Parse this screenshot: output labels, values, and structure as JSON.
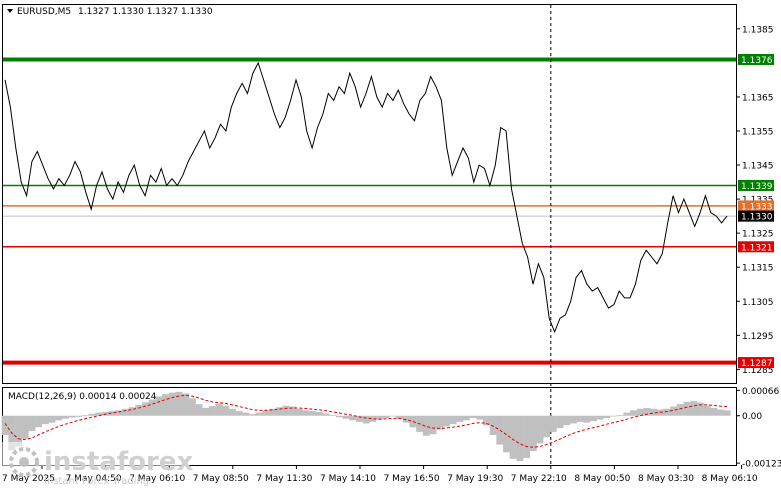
{
  "chart_data": [
    {
      "type": "line",
      "symbol": "EURUSD,M5",
      "ohlc_header": "1.1327 1.1330 1.1327 1.1330",
      "ylim": [
        1.1281,
        1.1392
      ],
      "y_ticks": [
        1.1385,
        1.1365,
        1.1355,
        1.1345,
        1.1335,
        1.1325,
        1.1315,
        1.1305,
        1.1295,
        1.1285
      ],
      "x_tick_labels": [
        "7 May 2025",
        "7 May 04:50",
        "7 May 06:10",
        "7 May 08:50",
        "7 May 11:30",
        "7 May 14:10",
        "7 May 16:50",
        "7 May 19:30",
        "7 May 22:10",
        "8 May 00:50",
        "8 May 03:30",
        "8 May 06:10"
      ],
      "levels": [
        {
          "value": 1.1376,
          "label": "1.1376",
          "color": "#008000",
          "thick": true
        },
        {
          "value": 1.1339,
          "label": "1.1339",
          "color": "#008000",
          "thick": false
        },
        {
          "value": 1.1333,
          "label": "1.1333",
          "color": "#e07030",
          "thick": false
        },
        {
          "value": 1.133,
          "label": "1.1330",
          "color": "#c0c0c0",
          "thick": false
        },
        {
          "value": 1.1321,
          "label": "1.1321",
          "color": "#e00000",
          "thick": false
        },
        {
          "value": 1.1287,
          "label": "1.1287",
          "color": "#e00000",
          "thick": true
        }
      ],
      "vline_fraction_label": "7 May 22:10",
      "price_series": [
        1.137,
        1.1362,
        1.135,
        1.134,
        1.1336,
        1.1346,
        1.1349,
        1.1345,
        1.1341,
        1.1338,
        1.1341,
        1.1339,
        1.1342,
        1.1346,
        1.1343,
        1.1337,
        1.1332,
        1.1339,
        1.1343,
        1.1338,
        1.1335,
        1.134,
        1.1337,
        1.1342,
        1.1345,
        1.1339,
        1.1336,
        1.1342,
        1.134,
        1.1344,
        1.1339,
        1.1341,
        1.1339,
        1.1342,
        1.1346,
        1.1349,
        1.1352,
        1.1355,
        1.135,
        1.1353,
        1.1357,
        1.1355,
        1.1362,
        1.1366,
        1.1369,
        1.1366,
        1.1372,
        1.1375,
        1.137,
        1.1365,
        1.136,
        1.1356,
        1.1359,
        1.1364,
        1.137,
        1.1365,
        1.1355,
        1.135,
        1.1356,
        1.136,
        1.1366,
        1.1364,
        1.1368,
        1.1366,
        1.1372,
        1.1368,
        1.1362,
        1.1366,
        1.1371,
        1.1365,
        1.1362,
        1.1366,
        1.1364,
        1.1367,
        1.1363,
        1.136,
        1.1358,
        1.1364,
        1.1366,
        1.1371,
        1.1368,
        1.1364,
        1.135,
        1.1342,
        1.1346,
        1.135,
        1.1347,
        1.134,
        1.1345,
        1.1344,
        1.1339,
        1.1345,
        1.1356,
        1.1355,
        1.1338,
        1.133,
        1.1322,
        1.1318,
        1.131,
        1.1316,
        1.1312,
        1.13,
        1.1296,
        1.13,
        1.1301,
        1.1305,
        1.1312,
        1.1314,
        1.131,
        1.1308,
        1.1309,
        1.1306,
        1.1303,
        1.1304,
        1.1308,
        1.1306,
        1.1306,
        1.131,
        1.1317,
        1.132,
        1.1318,
        1.1316,
        1.1319,
        1.1328,
        1.1336,
        1.1331,
        1.1335,
        1.1331,
        1.1327,
        1.1331,
        1.1336,
        1.1331,
        1.133,
        1.1328,
        1.133
      ],
      "macd": {
        "label": "MACD(12,26,9) 0.00014 0.00024",
        "ylim": [
          -0.00128,
          0.00072
        ],
        "y_ticks": [
          0.00066,
          0.0,
          -0.00123
        ],
        "y_tick_labels": [
          "0.00066",
          "0.00",
          "-0.00123"
        ],
        "histogram": [
          -0.0005,
          -0.0009,
          -0.0008,
          -0.0006,
          -0.0004,
          -0.0003,
          -0.00022,
          -0.00018,
          -0.00012,
          -8e-05,
          -5e-05,
          -3e-05,
          2e-05,
          5e-05,
          8e-05,
          0.0001,
          0.00012,
          0.00014,
          0.00018,
          0.00022,
          0.00028,
          0.00035,
          0.00042,
          0.0005,
          0.00056,
          0.0006,
          0.00062,
          0.00058,
          0.00045,
          0.0003,
          0.0002,
          0.00025,
          0.00032,
          0.00026,
          0.00018,
          0.00012,
          8e-05,
          4e-05,
          8e-05,
          0.00014,
          0.00018,
          0.00022,
          0.00026,
          0.00024,
          0.00018,
          0.00014,
          0.00012,
          0.0001,
          6e-05,
          2e-05,
          -4e-05,
          -8e-05,
          -0.00012,
          -0.00016,
          -0.0002,
          -0.00016,
          -0.0001,
          -6e-05,
          -2e-05,
          -8e-05,
          -0.00018,
          -0.0003,
          -0.00042,
          -0.00052,
          -0.00048,
          -0.00036,
          -0.00028,
          -0.00022,
          -0.00016,
          -0.00012,
          -6e-05,
          -0.0001,
          -0.00025,
          -0.0005,
          -0.00075,
          -0.00095,
          -0.00112,
          -0.00118,
          -0.0011,
          -0.00092,
          -0.00072,
          -0.00056,
          -0.00042,
          -0.00032,
          -0.00024,
          -0.0002,
          -0.00016,
          -0.00018,
          -0.00014,
          -0.0001,
          -6e-05,
          -2e-05,
          2e-05,
          8e-05,
          0.00014,
          0.00018,
          0.0002,
          0.00018,
          0.00016,
          0.00018,
          0.00024,
          0.0003,
          0.00036,
          0.00038,
          0.00034,
          0.00026,
          0.0002,
          0.00016,
          0.00014
        ],
        "signal": [
          -0.0002,
          -0.00045,
          -0.0006,
          -0.00062,
          -0.00058,
          -0.0005,
          -0.00042,
          -0.00035,
          -0.00028,
          -0.00022,
          -0.00017,
          -0.00012,
          -8e-05,
          -4e-05,
          0.0,
          4e-05,
          7e-05,
          0.0001,
          0.00013,
          0.00016,
          0.0002,
          0.00025,
          0.0003,
          0.00036,
          0.00042,
          0.00047,
          0.00051,
          0.00053,
          0.00051,
          0.00046,
          0.0004,
          0.00036,
          0.00034,
          0.00032,
          0.00028,
          0.00024,
          0.0002,
          0.00016,
          0.00014,
          0.00014,
          0.00015,
          0.00017,
          0.00019,
          0.0002,
          0.0002,
          0.00019,
          0.00017,
          0.00015,
          0.00013,
          0.0001,
          7e-05,
          4e-05,
          1e-05,
          -3e-05,
          -6e-05,
          -8e-05,
          -9e-05,
          -8e-05,
          -7e-05,
          -7e-05,
          -0.0001,
          -0.00015,
          -0.00021,
          -0.00028,
          -0.00032,
          -0.00033,
          -0.00032,
          -0.0003,
          -0.00027,
          -0.00024,
          -0.0002,
          -0.00018,
          -0.0002,
          -0.00027,
          -0.00037,
          -0.00049,
          -0.00062,
          -0.00073,
          -0.0008,
          -0.00082,
          -0.0008,
          -0.00075,
          -0.00068,
          -0.00061,
          -0.00053,
          -0.00046,
          -0.0004,
          -0.00035,
          -0.00031,
          -0.00027,
          -0.00022,
          -0.00018,
          -0.00014,
          -9e-05,
          -4e-05,
          0.0,
          4e-05,
          7e-05,
          9e-05,
          0.00011,
          0.00014,
          0.00018,
          0.00022,
          0.00026,
          0.00028,
          0.00028,
          0.00027,
          0.00025,
          0.00024
        ]
      }
    }
  ],
  "watermark": {
    "brand": "instaforex",
    "tagline": "Instant Forex Trading"
  },
  "colors": {
    "price_line": "#000000",
    "histogram": "#c0c0c0",
    "signal": "#e00000",
    "grid_border": "#000000"
  }
}
